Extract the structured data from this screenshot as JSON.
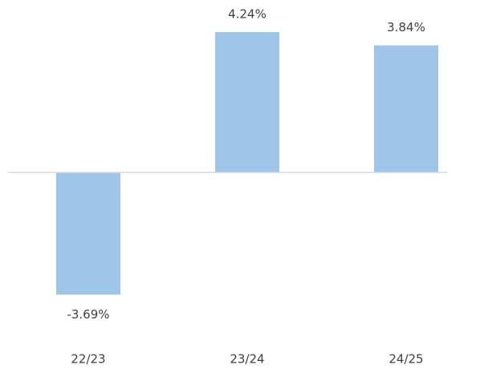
{
  "chart_data": {
    "type": "bar",
    "categories": [
      "22/23",
      "23/24",
      "24/25"
    ],
    "values": [
      -3.69,
      4.24,
      3.84
    ],
    "value_labels": [
      "-3.69%",
      "4.24%",
      "3.84%"
    ],
    "color": "#9fc5e8"
  }
}
